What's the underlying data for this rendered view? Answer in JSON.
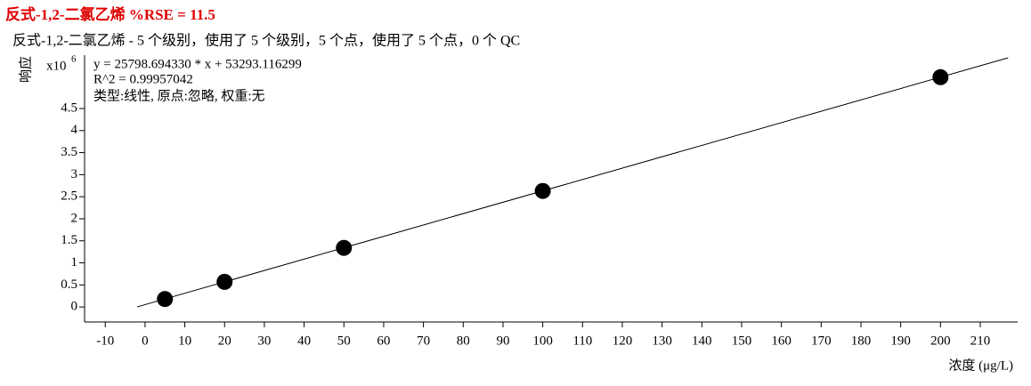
{
  "chart_data": {
    "type": "scatter",
    "title": "反式-1,2-二氯乙烯   %RSE = 11.5",
    "subtitle": "反式-1,2-二氯乙烯 - 5 个级别，使用了 5 个级别，5 个点，使用了 5 个点，0 个 QC",
    "y_label": "响应",
    "y_scale_label": "x10",
    "y_scale_exponent": "6",
    "x_label": "浓度 (μg/L)",
    "annotations": [
      "y = 25798.694330 * x  + 53293.116299",
      "R^2 = 0.99957042",
      "类型:线性, 原点:忽略, 权重:无"
    ],
    "x": [
      5,
      20,
      50,
      100,
      200
    ],
    "values": [
      0.18,
      0.57,
      1.34,
      2.63,
      5.21
    ],
    "color": "#000000",
    "fit_line": {
      "x": [
        -2,
        217
      ],
      "values": [
        0.0017,
        5.65
      ]
    },
    "xlim": [
      -15.2,
      219.4
    ],
    "ylim": [
      -0.34,
      5.71
    ],
    "xticks": [
      -10,
      0,
      10,
      20,
      30,
      40,
      50,
      60,
      70,
      80,
      90,
      100,
      110,
      120,
      130,
      140,
      150,
      160,
      170,
      180,
      190,
      200,
      210
    ],
    "yticks": [
      0,
      0.5,
      1,
      1.5,
      2,
      2.5,
      3,
      3.5,
      4,
      4.5
    ]
  }
}
